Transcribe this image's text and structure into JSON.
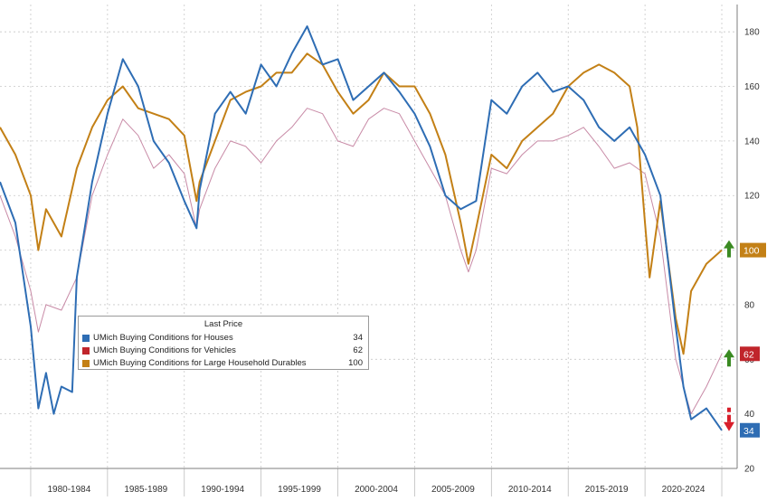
{
  "chart_data": {
    "type": "line",
    "title": "",
    "xlabel": "",
    "ylabel": "",
    "x_tick_labels": [
      "1980-1984",
      "1985-1989",
      "1990-1994",
      "1995-1999",
      "2000-2004",
      "2005-2009",
      "2010-2014",
      "2015-2019",
      "2020-2024"
    ],
    "x_range": [
      1978,
      2026
    ],
    "ylim": [
      20,
      190
    ],
    "y_ticks": [
      20,
      40,
      60,
      80,
      100,
      120,
      140,
      160,
      180
    ],
    "y_axis_side": "right",
    "grid": true,
    "legend": {
      "title": "Last Price",
      "placement": "lower-left"
    },
    "series": [
      {
        "name": "UMich Buying Conditions for Houses",
        "last_price": "34",
        "color": "#2e6db4",
        "x": [
          1978,
          1979,
          1980,
          1980.5,
          1981,
          1981.5,
          1982,
          1982.7,
          1983,
          1984,
          1985,
          1986,
          1987,
          1988,
          1989,
          1990,
          1990.8,
          1991,
          1992,
          1993,
          1994,
          1995,
          1996,
          1997,
          1998,
          1999,
          2000,
          2001,
          2002,
          2003,
          2004,
          2005,
          2006,
          2007,
          2008,
          2009,
          2010,
          2011,
          2012,
          2013,
          2014,
          2015,
          2016,
          2017,
          2018,
          2019,
          2020,
          2021,
          2022,
          2022.5,
          2023,
          2024,
          2025
        ],
        "y": [
          125,
          110,
          72,
          42,
          55,
          40,
          50,
          48,
          90,
          125,
          150,
          170,
          160,
          140,
          132,
          118,
          108,
          122,
          150,
          158,
          150,
          168,
          160,
          172,
          182,
          168,
          170,
          155,
          160,
          165,
          158,
          150,
          138,
          120,
          115,
          118,
          155,
          150,
          160,
          165,
          158,
          160,
          155,
          145,
          140,
          145,
          135,
          120,
          72,
          50,
          38,
          42,
          34
        ]
      },
      {
        "name": "UMich Buying Conditions for Vehicles",
        "last_price": "62",
        "color": "#c88aa6",
        "x": [
          1978,
          1979,
          1980,
          1980.5,
          1981,
          1982,
          1983,
          1984,
          1985,
          1986,
          1987,
          1988,
          1989,
          1990,
          1990.8,
          1991,
          1992,
          1993,
          1994,
          1995,
          1996,
          1997,
          1998,
          1999,
          2000,
          2001,
          2002,
          2003,
          2004,
          2005,
          2006,
          2007,
          2008,
          2008.5,
          2009,
          2010,
          2011,
          2012,
          2013,
          2014,
          2015,
          2016,
          2017,
          2018,
          2019,
          2020,
          2021,
          2022,
          2023,
          2024,
          2025
        ],
        "y": [
          120,
          105,
          85,
          70,
          80,
          78,
          90,
          120,
          135,
          148,
          142,
          130,
          135,
          128,
          108,
          115,
          130,
          140,
          138,
          132,
          140,
          145,
          152,
          150,
          140,
          138,
          148,
          152,
          150,
          140,
          130,
          120,
          100,
          92,
          100,
          130,
          128,
          135,
          140,
          140,
          142,
          145,
          138,
          130,
          132,
          128,
          105,
          60,
          40,
          50,
          62
        ]
      },
      {
        "name": "UMich Buying Conditions for Large Household Durables",
        "last_price": "100",
        "color": "#c38016",
        "x": [
          1978,
          1979,
          1980,
          1980.5,
          1981,
          1982,
          1983,
          1984,
          1985,
          1986,
          1987,
          1988,
          1989,
          1990,
          1990.8,
          1991,
          1992,
          1993,
          1994,
          1995,
          1996,
          1997,
          1998,
          1999,
          2000,
          2001,
          2002,
          2003,
          2004,
          2005,
          2006,
          2007,
          2008,
          2008.5,
          2009,
          2010,
          2011,
          2012,
          2013,
          2014,
          2015,
          2016,
          2017,
          2018,
          2019,
          2019.5,
          2020,
          2020.3,
          2021,
          2022,
          2022.5,
          2023,
          2024,
          2025
        ],
        "y": [
          145,
          135,
          120,
          100,
          115,
          105,
          130,
          145,
          155,
          160,
          152,
          150,
          148,
          142,
          118,
          125,
          140,
          155,
          158,
          160,
          165,
          165,
          172,
          168,
          158,
          150,
          155,
          165,
          160,
          160,
          150,
          135,
          110,
          95,
          108,
          135,
          130,
          140,
          145,
          150,
          160,
          165,
          168,
          165,
          160,
          145,
          110,
          90,
          118,
          75,
          62,
          85,
          95,
          100
        ]
      }
    ],
    "right_labels": [
      {
        "text": "100",
        "value": 100,
        "color": "#c38016"
      },
      {
        "text": "62",
        "value": 62,
        "color": "#c0252b"
      },
      {
        "text": "34",
        "value": 34,
        "color": "#2e6db4"
      }
    ],
    "arrows": [
      {
        "direction": "up",
        "color": "#3a8a22",
        "value": 100
      },
      {
        "direction": "up",
        "color": "#3a8a22",
        "value": 60
      },
      {
        "direction": "down",
        "color": "#d81e2a",
        "value": 35
      }
    ]
  },
  "legend_items": [
    {
      "name": "UMich Buying Conditions for Houses",
      "value": "34",
      "color": "#2e6db4"
    },
    {
      "name": "UMich Buying Conditions for Vehicles",
      "value": "62",
      "color": "#c0252b"
    },
    {
      "name": "UMich Buying Conditions for Large Household Durables",
      "value": "100",
      "color": "#c38016"
    }
  ]
}
